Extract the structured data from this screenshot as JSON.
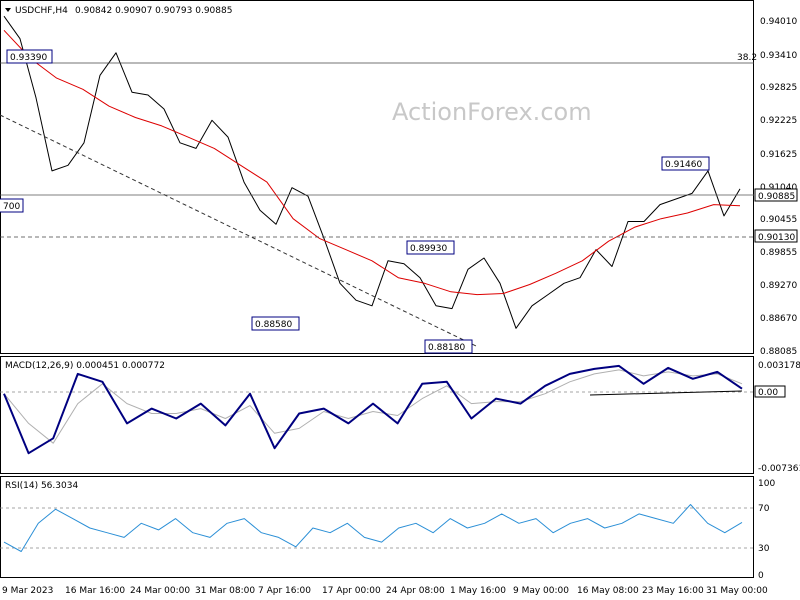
{
  "header": {
    "symbol": "USDCHF,H4",
    "ohlc": "0.90842 0.90907 0.90793 0.90885"
  },
  "watermark": "ActionForex.com",
  "colors": {
    "price": "#000000",
    "sma": "#dd0000",
    "macd": "#000080",
    "signal": "#b0b0b0",
    "rsi": "#2b8fd6",
    "annotation_border": "#000080",
    "current_price_tag": "#ffffff"
  },
  "price_panel": {
    "y_ticks": [
      "0.94010",
      "0.93410",
      "0.92825",
      "0.92225",
      "0.91625",
      "0.91040",
      "0.90455",
      "0.89855",
      "0.89270",
      "0.88670",
      "0.88085"
    ],
    "fib_label": "38.2",
    "current_price": "0.90885",
    "support_price": "0.90130",
    "annotations": {
      "a1": "0.93390",
      "a2": "0.88580",
      "a3": "0.88180",
      "a4": "0.89930",
      "a5": "0.91460",
      "a6": "700"
    }
  },
  "macd_panel": {
    "label": "MACD(12,26,9) 0.000451 0.000772",
    "ticks": [
      "0.003178",
      "0.00",
      "-0.007361"
    ],
    "tag": "0.00"
  },
  "rsi_panel": {
    "label": "RSI(14) 56.3034",
    "ticks": [
      "100",
      "70",
      "30",
      "0"
    ]
  },
  "x_labels": [
    "9 Mar 2023",
    "16 Mar 16:00",
    "24 Mar 00:00",
    "31 Mar 08:00",
    "7 Apr 16:00",
    "17 Apr 00:00",
    "24 Apr 08:00",
    "1 May 16:00",
    "9 May 00:00",
    "16 May 08:00",
    "23 May 16:00",
    "31 May 00:00"
  ],
  "chart_data": [
    {
      "type": "line",
      "title": "USDCHF,H4",
      "ylim": [
        0.8805,
        0.9415
      ],
      "series": [
        {
          "values": [
            0.9395,
            0.9355,
            0.925,
            0.912,
            0.913,
            0.917,
            0.929,
            0.933,
            0.926,
            0.9255,
            0.923,
            0.917,
            0.916,
            0.921,
            0.918,
            0.91,
            0.905,
            0.9025,
            0.909,
            0.9075,
            0.9,
            0.892,
            0.889,
            0.888,
            0.896,
            0.8955,
            0.893,
            0.888,
            0.8875,
            0.8945,
            0.8965,
            0.892,
            0.884,
            0.888,
            0.89,
            0.892,
            0.893,
            0.898,
            0.895,
            0.903,
            0.903,
            0.906,
            0.907,
            0.908,
            0.912,
            0.904,
            0.9088
          ]
        },
        {
          "name": "",
          "values": [
            0.937,
            0.932,
            0.9285,
            0.9265,
            0.9235,
            0.9215,
            0.92,
            0.918,
            0.916,
            0.913,
            0.91,
            0.9035,
            0.9,
            0.898,
            0.896,
            0.893,
            0.892,
            0.8905,
            0.89,
            0.8902,
            0.8918,
            0.8938,
            0.896,
            0.8995,
            0.902,
            0.9035,
            0.9045,
            0.906,
            0.9058
          ]
        }
      ]
    },
    {
      "type": "line",
      "title": "MACD(12,26,9) 0.000451 0.000772",
      "ylim": [
        -0.0077,
        0.0034
      ],
      "series": [
        {
          "values": [
            0.0,
            -0.006,
            -0.0045,
            0.002,
            0.0012,
            -0.003,
            -0.0015,
            -0.0025,
            -0.001,
            -0.0032,
            0.0,
            -0.0055,
            -0.002,
            -0.0015,
            -0.003,
            -0.001,
            -0.003,
            0.001,
            0.0012,
            -0.0025,
            -0.0005,
            -0.001,
            0.0008,
            0.002,
            0.0025,
            0.0028,
            0.001,
            0.0026,
            0.0015,
            0.0022,
            0.0005
          ]
        },
        {
          "values": [
            0.0,
            -0.003,
            -0.005,
            -0.001,
            0.001,
            -0.001,
            -0.002,
            -0.002,
            -0.0015,
            -0.0025,
            -0.0012,
            -0.004,
            -0.0035,
            -0.0018,
            -0.0025,
            -0.0018,
            -0.0022,
            -0.0005,
            0.0008,
            -0.001,
            -0.0008,
            -0.0008,
            0.0,
            0.0012,
            0.002,
            0.0024,
            0.0018,
            0.0022,
            0.0018,
            0.002,
            0.001
          ]
        }
      ]
    },
    {
      "type": "line",
      "title": "RSI(14) 56.3034",
      "ylim": [
        0,
        100
      ],
      "series": [
        {
          "values": [
            35,
            25,
            55,
            70,
            60,
            50,
            45,
            40,
            55,
            48,
            60,
            45,
            40,
            55,
            60,
            45,
            40,
            30,
            50,
            45,
            55,
            40,
            35,
            50,
            55,
            45,
            60,
            50,
            55,
            65,
            55,
            60,
            45,
            55,
            60,
            50,
            55,
            65,
            60,
            55,
            75,
            55,
            45,
            56
          ]
        }
      ]
    }
  ]
}
